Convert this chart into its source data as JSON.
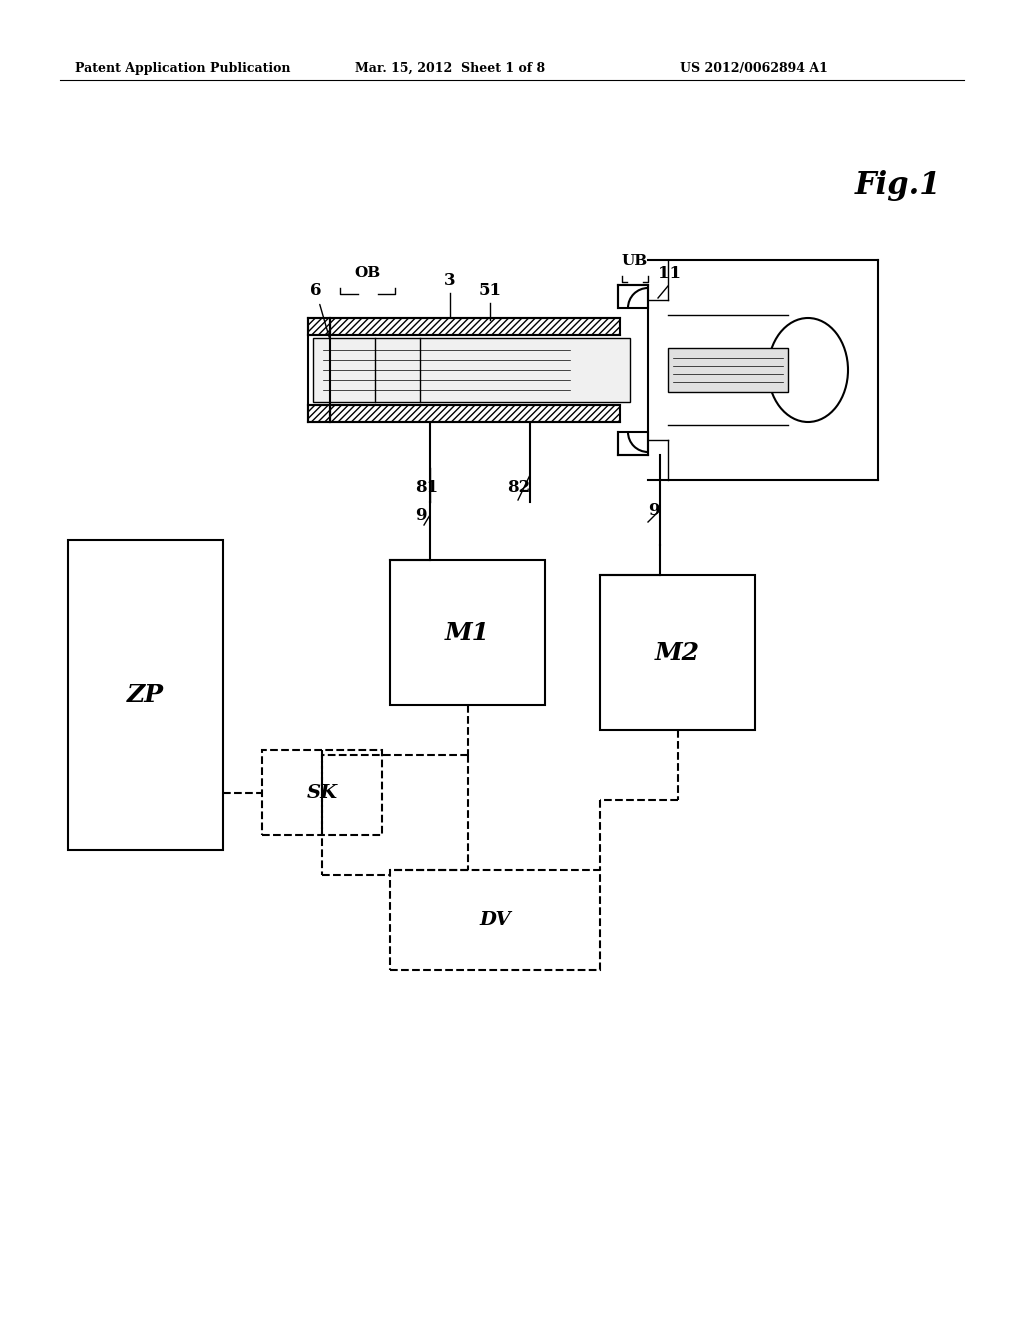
{
  "bg_color": "#ffffff",
  "header_left": "Patent Application Publication",
  "header_mid": "Mar. 15, 2012  Sheet 1 of 8",
  "header_right": "US 2012/0062894 A1",
  "fig_label": "Fig.1"
}
